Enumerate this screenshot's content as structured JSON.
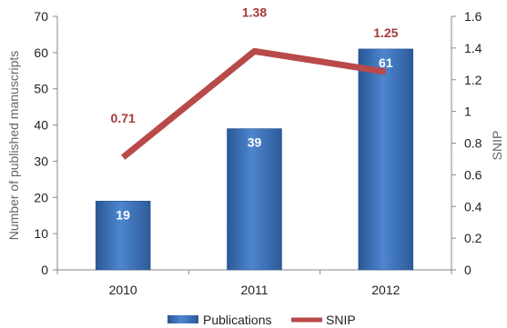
{
  "chart_data": {
    "type": "bar",
    "categories": [
      "2010",
      "2011",
      "2012"
    ],
    "series": [
      {
        "name": "Publications",
        "type": "bar",
        "axis": "left",
        "values": [
          19,
          39,
          61
        ],
        "color": "#3f73b8"
      },
      {
        "name": "SNIP",
        "type": "line",
        "axis": "right",
        "values": [
          0.71,
          1.38,
          1.25
        ],
        "color": "#b84a4a"
      }
    ],
    "data_labels": {
      "Publications": [
        "19",
        "39",
        "61"
      ],
      "SNIP": [
        "0.71",
        "1.38",
        "1.25"
      ]
    },
    "ylabel": "Number of published manuscripts",
    "y2label": "SNIP",
    "ylim": [
      0,
      70
    ],
    "y2lim": [
      0,
      1.6
    ],
    "yticks": [
      "0",
      "10",
      "20",
      "30",
      "40",
      "50",
      "60",
      "70"
    ],
    "y2ticks": [
      "0",
      "0.2",
      "0.4",
      "0.6",
      "0.8",
      "1",
      "1.2",
      "1.4",
      "1.6"
    ],
    "grid": false,
    "legend": {
      "position": "bottom",
      "entries": [
        "Publications",
        "SNIP"
      ]
    }
  }
}
